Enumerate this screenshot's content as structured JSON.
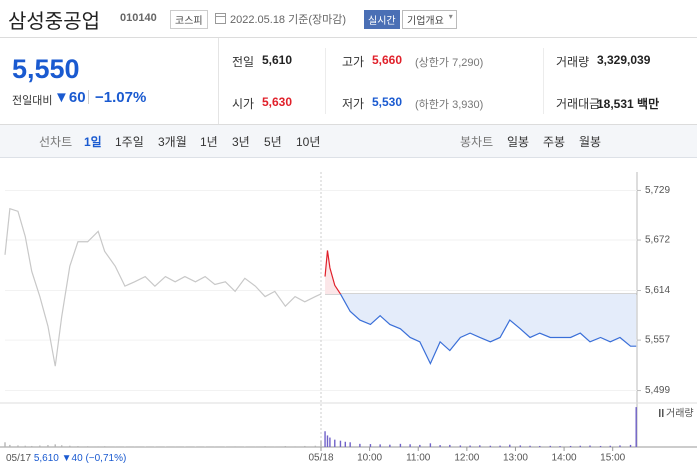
{
  "header": {
    "name": "삼성중공업",
    "code": "010140",
    "market": "코스피",
    "date": "2022.05.18 기준(장마감)",
    "realtime": "실시간",
    "company_info": "기업개요"
  },
  "summary": {
    "price": "5,550",
    "change_label": "전일대비",
    "change_arrow": "▼",
    "change": "60",
    "change_rate": "−1.07%",
    "rows": [
      [
        {
          "label": "전일",
          "value": "5,610"
        },
        {
          "label": "고가",
          "value": "5,660",
          "note": "(상한가 7,290)"
        },
        {
          "label": "거래량",
          "value": "3,329,039"
        }
      ],
      [
        {
          "label": "시가",
          "value": "5,630"
        },
        {
          "label": "저가",
          "value": "5,530",
          "note": "(하한가 3,930)"
        },
        {
          "label": "거래대금",
          "value": "18,531 백만"
        }
      ]
    ]
  },
  "line_tabs": {
    "label": "선차트",
    "options": [
      "1일",
      "1주일",
      "3개월",
      "1년",
      "3년",
      "5년",
      "10년"
    ],
    "selected": 0
  },
  "candle_tabs": {
    "label": "봉차트",
    "options": [
      "일봉",
      "주봉",
      "월봉"
    ]
  },
  "chart_data": {
    "type": "line",
    "xlim": [
      0,
      780
    ],
    "ylim": [
      5487,
      5741
    ],
    "yticks": [
      {
        "value": 5729,
        "label": "5,729"
      },
      {
        "value": 5672,
        "label": "5,672"
      },
      {
        "value": 5614,
        "label": "5,614"
      },
      {
        "value": 5557,
        "label": "5,557"
      },
      {
        "value": 5499,
        "label": "5,499"
      }
    ],
    "xticks": [
      {
        "value": 390,
        "label": "05/18"
      },
      {
        "value": 450,
        "label": "10:00"
      },
      {
        "value": 510,
        "label": "11:00"
      },
      {
        "value": 570,
        "label": "12:00"
      },
      {
        "value": 630,
        "label": "13:00"
      },
      {
        "value": 690,
        "label": "14:00"
      },
      {
        "value": 750,
        "label": "15:00"
      }
    ],
    "baseline": 5610,
    "volume_label": "거래량",
    "volume_ylim": [
      0,
      400000
    ],
    "prev_summary": {
      "date": "05/17",
      "price": "5,610",
      "change": "▼40",
      "rate": "(−0,71%)"
    },
    "series": [
      {
        "color": "#c8c8c8",
        "volume_color": "#b5b5b5",
        "x": [
          0,
          6,
          16,
          25,
          33,
          43,
          53,
          62,
          70,
          80,
          90,
          102,
          115,
          123,
          136,
          148,
          160,
          173,
          185,
          198,
          210,
          222,
          235,
          247,
          259,
          272,
          284,
          296,
          309,
          321,
          333,
          346,
          358,
          370,
          383,
          390
        ],
        "values": [
          5655,
          5708,
          5705,
          5676,
          5636,
          5607,
          5573,
          5527,
          5584,
          5642,
          5670,
          5670,
          5682,
          5659,
          5642,
          5619,
          5624,
          5630,
          5619,
          5630,
          5624,
          5630,
          5624,
          5630,
          5621,
          5624,
          5613,
          5628,
          5619,
          5607,
          5613,
          5596,
          5607,
          5601,
          5607,
          5610
        ],
        "volume": [
          45000,
          20000,
          15000,
          12000,
          10000,
          14000,
          18000,
          25000,
          16000,
          12000,
          9000,
          8000,
          7000,
          8000,
          6000,
          5000,
          6000,
          5000,
          4000,
          5000,
          6000,
          4000,
          5000,
          4000,
          6000,
          5000,
          7000,
          5000,
          6000,
          8000,
          6000,
          9000,
          7000,
          10000,
          12000,
          60000
        ]
      },
      {
        "color": "#3a6fd8",
        "up_color": "#e0202a",
        "area_color": "#e4ecfa",
        "up_area_color": "#fbe6e8",
        "volume_color": "#7062c8",
        "x": [
          395,
          398,
          401,
          407,
          414,
          420,
          426,
          438,
          451,
          463,
          475,
          488,
          500,
          512,
          525,
          537,
          549,
          562,
          574,
          586,
          599,
          611,
          623,
          636,
          648,
          660,
          673,
          685,
          698,
          710,
          722,
          735,
          747,
          759,
          772,
          779
        ],
        "values": [
          5630,
          5660,
          5640,
          5620,
          5610,
          5600,
          5590,
          5580,
          5575,
          5585,
          5575,
          5570,
          5560,
          5555,
          5530,
          5555,
          5545,
          5560,
          5565,
          5560,
          5555,
          5560,
          5580,
          5570,
          5560,
          5565,
          5560,
          5560,
          5560,
          5565,
          5555,
          5560,
          5555,
          5560,
          5550,
          5550
        ],
        "volume": [
          150000,
          110000,
          90000,
          70000,
          60000,
          50000,
          45000,
          30000,
          28000,
          25000,
          22000,
          30000,
          26000,
          20000,
          35000,
          18000,
          20000,
          15000,
          14000,
          16000,
          12000,
          13000,
          22000,
          15000,
          12000,
          10000,
          11000,
          9000,
          10000,
          12000,
          14000,
          10000,
          12000,
          15000,
          20000,
          380000
        ]
      }
    ]
  }
}
